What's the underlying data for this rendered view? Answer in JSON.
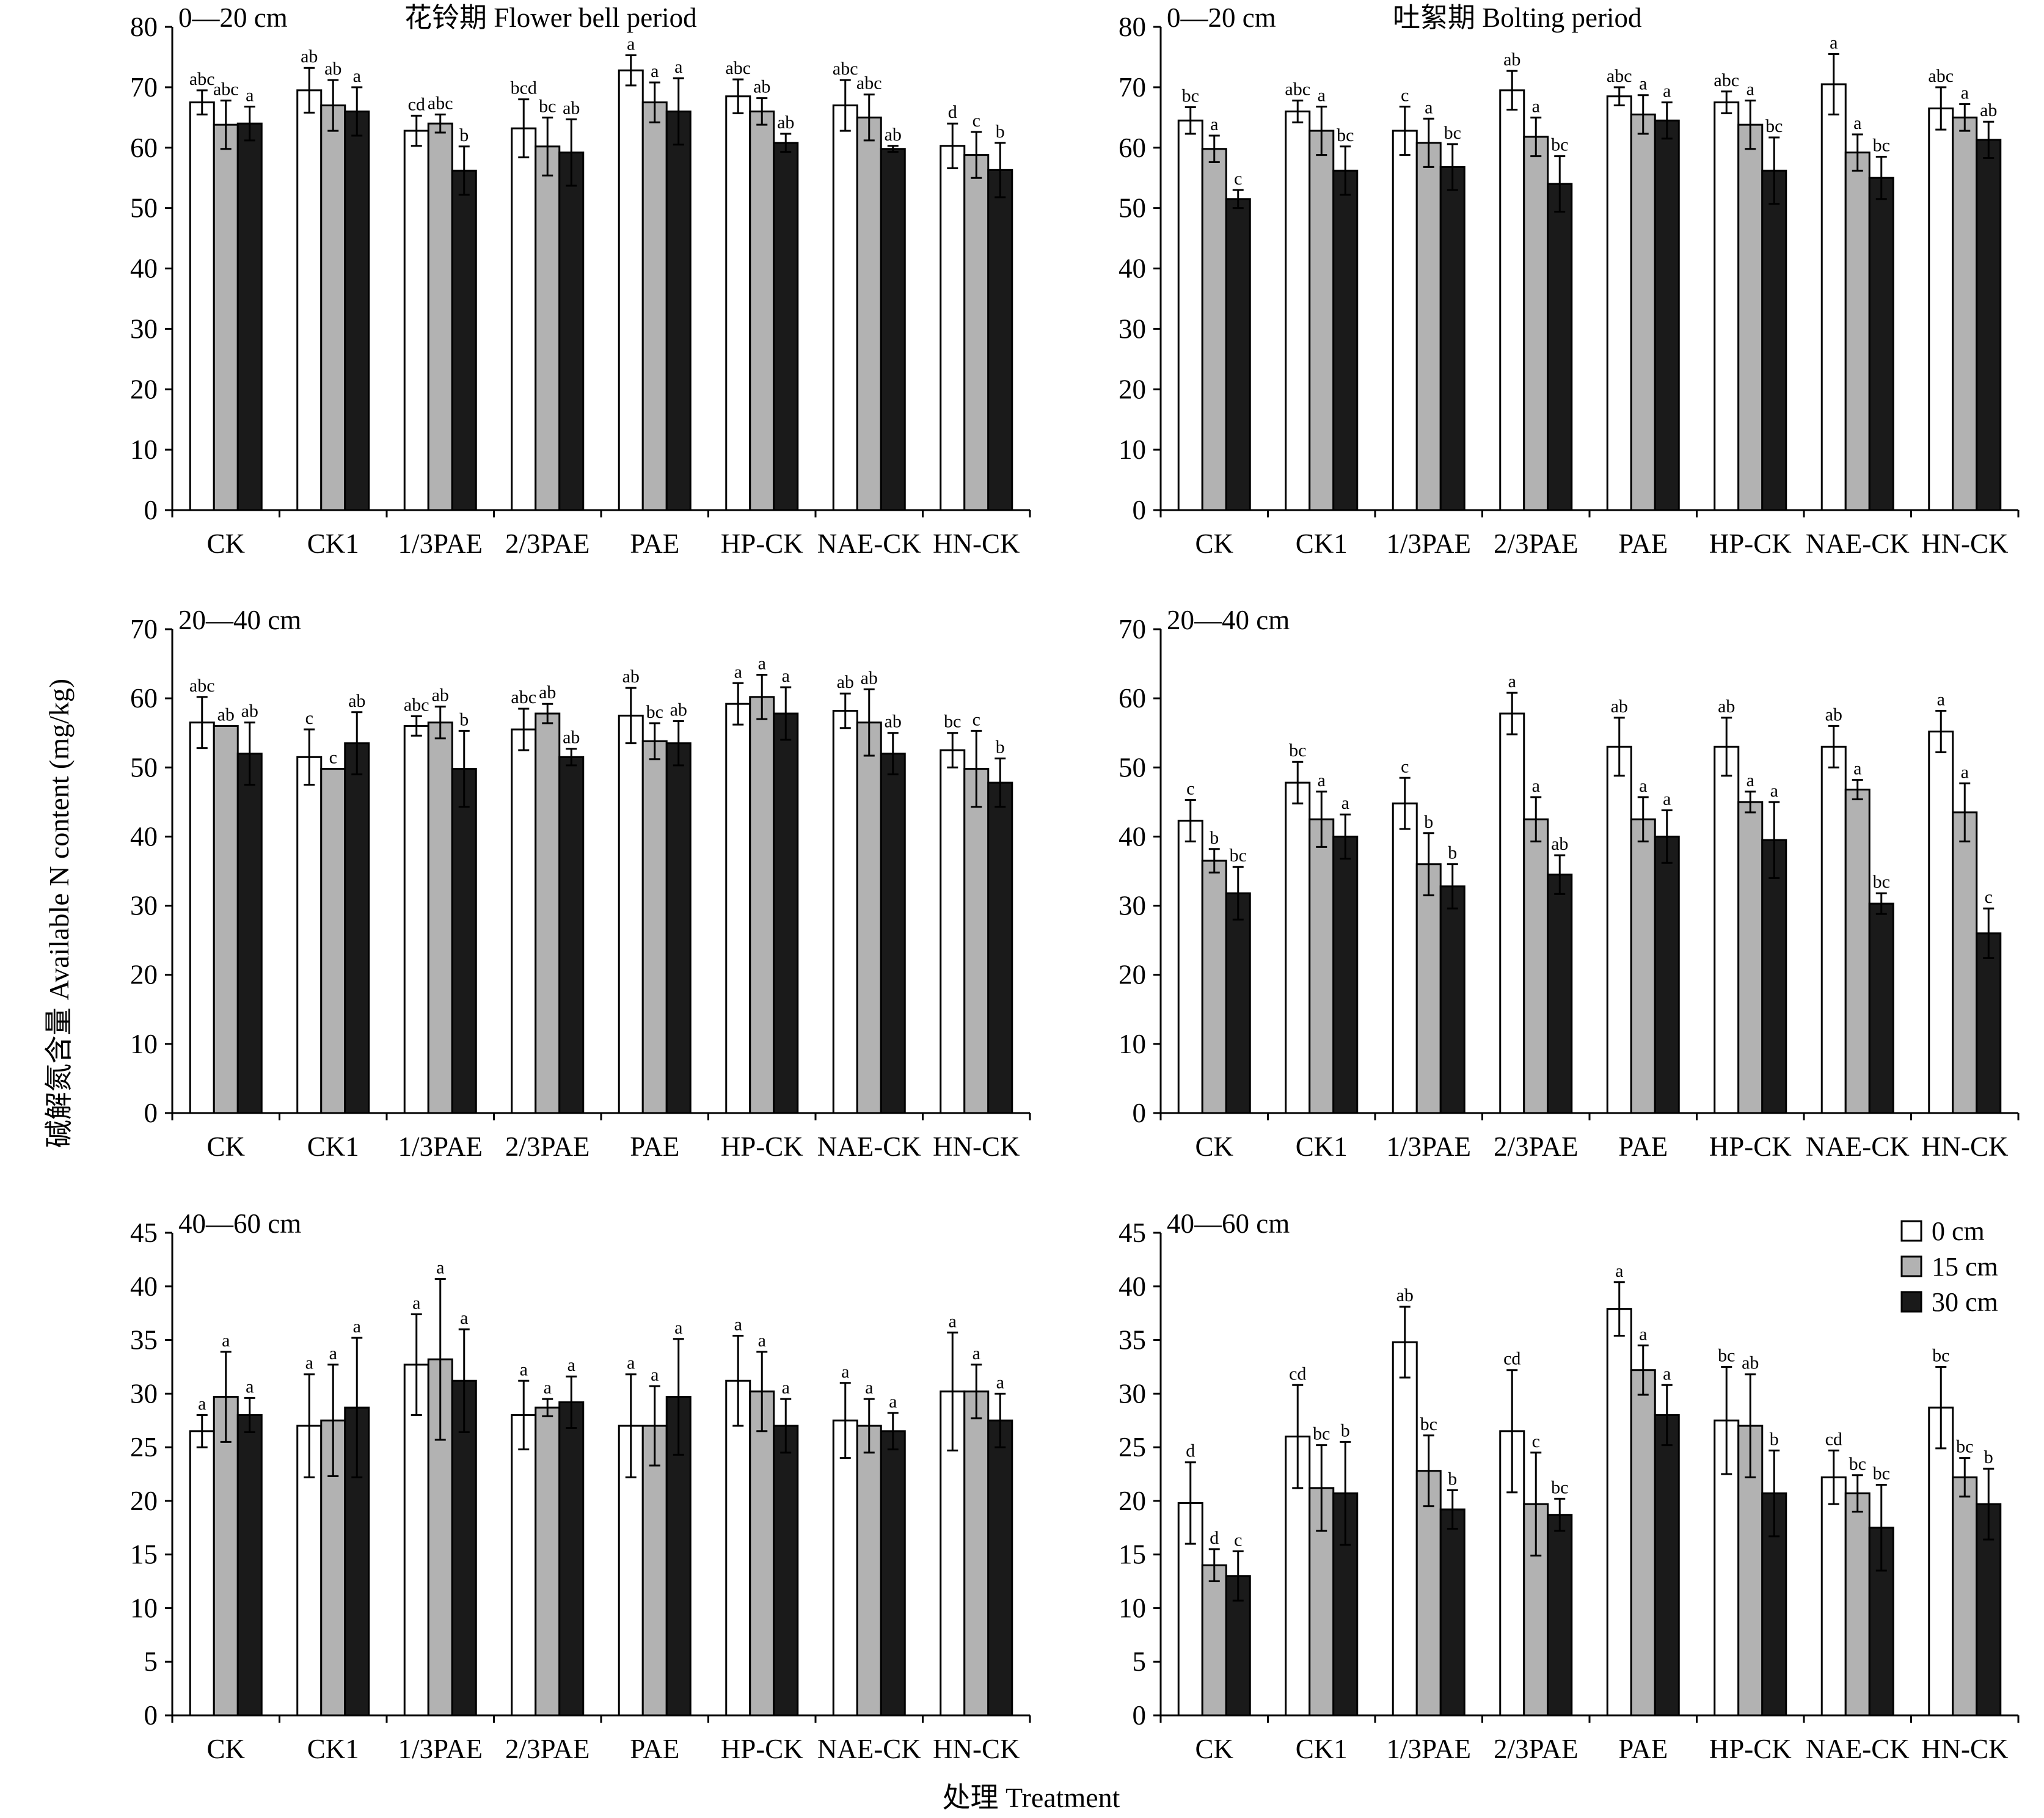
{
  "figure": {
    "ylabel": "碱解氮含量 Available N content (mg/kg)",
    "xlabel": "处理 Treatment"
  },
  "legend": {
    "items": [
      {
        "label": "0 cm",
        "color": "#ffffff"
      },
      {
        "label": "15 cm",
        "color": "#b2b2b2"
      },
      {
        "label": "30 cm",
        "color": "#1a1a1a"
      }
    ]
  },
  "chart_data": [
    {
      "type": "bar",
      "depth_label": "0—20 cm",
      "title": "花铃期 Flower bell period",
      "categories": [
        "CK",
        "CK1",
        "1/3PAE",
        "2/3PAE",
        "PAE",
        "HP-CK",
        "NAE-CK",
        "HN-CK"
      ],
      "ylim": [
        0,
        80
      ],
      "yticks": [
        0,
        10,
        20,
        30,
        40,
        50,
        60,
        70,
        80
      ],
      "series": [
        {
          "name": "0 cm",
          "values": [
            67.5,
            69.5,
            62.8,
            63.2,
            72.8,
            68.5,
            67,
            60.3
          ],
          "errors": [
            2,
            3.7,
            2.5,
            4.8,
            2.5,
            2.8,
            4.2,
            3.7
          ],
          "letters": [
            "abc",
            "ab",
            "cd",
            "bcd",
            "a",
            "abc",
            "abc",
            "d"
          ]
        },
        {
          "name": "15 cm",
          "values": [
            63.8,
            67,
            64,
            60.2,
            67.5,
            66,
            65,
            58.8
          ],
          "errors": [
            4,
            4.2,
            1.5,
            4.8,
            3.3,
            2.2,
            3.8,
            3.8
          ],
          "letters": [
            "abc",
            "ab",
            "abc",
            "bc",
            "a",
            "ab",
            "abc",
            "c"
          ]
        },
        {
          "name": "30 cm",
          "values": [
            64,
            66,
            56.2,
            59.2,
            66,
            60.8,
            59.8,
            56.3
          ],
          "errors": [
            2.8,
            4,
            4,
            5.5,
            5.5,
            1.5,
            0.5,
            4.5
          ],
          "letters": [
            "a",
            "a",
            "b",
            "ab",
            "a",
            "ab",
            "ab",
            "b"
          ]
        }
      ]
    },
    {
      "type": "bar",
      "depth_label": "0—20 cm",
      "title": "吐絮期 Bolting period",
      "categories": [
        "CK",
        "CK1",
        "1/3PAE",
        "2/3PAE",
        "PAE",
        "HP-CK",
        "NAE-CK",
        "HN-CK"
      ],
      "ylim": [
        0,
        80
      ],
      "yticks": [
        0,
        10,
        20,
        30,
        40,
        50,
        60,
        70,
        80
      ],
      "series": [
        {
          "name": "0 cm",
          "values": [
            64.5,
            66,
            62.8,
            69.5,
            68.5,
            67.5,
            70.5,
            66.5
          ],
          "errors": [
            2.2,
            1.8,
            4,
            3.2,
            1.5,
            1.8,
            5,
            3.5
          ],
          "letters": [
            "bc",
            "abc",
            "c",
            "ab",
            "abc",
            "abc",
            "a",
            "abc"
          ]
        },
        {
          "name": "15 cm",
          "values": [
            59.8,
            62.8,
            60.8,
            61.8,
            65.5,
            63.8,
            59.2,
            65
          ],
          "errors": [
            2.2,
            4,
            4,
            3.2,
            3.2,
            4,
            3,
            2.2
          ],
          "letters": [
            "a",
            "a",
            "a",
            "a",
            "a",
            "a",
            "a",
            "a"
          ]
        },
        {
          "name": "30 cm",
          "values": [
            51.5,
            56.2,
            56.8,
            54,
            64.5,
            56.2,
            55,
            61.3
          ],
          "errors": [
            1.5,
            4,
            3.8,
            4.6,
            3,
            5.5,
            3.5,
            3
          ],
          "letters": [
            "c",
            "bc",
            "bc",
            "bc",
            "a",
            "bc",
            "bc",
            "ab"
          ]
        }
      ]
    },
    {
      "type": "bar",
      "depth_label": "20—40 cm",
      "title": "",
      "categories": [
        "CK",
        "CK1",
        "1/3PAE",
        "2/3PAE",
        "PAE",
        "HP-CK",
        "NAE-CK",
        "HN-CK"
      ],
      "ylim": [
        0,
        70
      ],
      "yticks": [
        0,
        10,
        20,
        30,
        40,
        50,
        60,
        70
      ],
      "series": [
        {
          "name": "0 cm",
          "values": [
            56.5,
            51.5,
            56,
            55.5,
            57.5,
            59.2,
            58.2,
            52.5
          ],
          "errors": [
            3.7,
            4,
            1.4,
            3,
            4,
            3,
            2.5,
            2.5
          ],
          "letters": [
            "abc",
            "c",
            "abc",
            "abc",
            "ab",
            "a",
            "ab",
            "bc"
          ]
        },
        {
          "name": "15 cm",
          "values": [
            56,
            49.8,
            56.5,
            57.8,
            53.8,
            60.2,
            56.5,
            49.8
          ],
          "errors": [
            0,
            0,
            2.3,
            1.4,
            2.6,
            3.2,
            4.8,
            5.5
          ],
          "letters": [
            "ab",
            "c",
            "ab",
            "ab",
            "bc",
            "a",
            "ab",
            "c"
          ]
        },
        {
          "name": "30 cm",
          "values": [
            52,
            53.5,
            49.8,
            51.5,
            53.5,
            57.8,
            52,
            47.8
          ],
          "errors": [
            4.5,
            4.5,
            5.5,
            1.2,
            3.2,
            3.8,
            3,
            3.5
          ],
          "letters": [
            "ab",
            "ab",
            "b",
            "ab",
            "ab",
            "a",
            "ab",
            "b"
          ]
        }
      ]
    },
    {
      "type": "bar",
      "depth_label": "20—40 cm",
      "title": "",
      "categories": [
        "CK",
        "CK1",
        "1/3PAE",
        "2/3PAE",
        "PAE",
        "HP-CK",
        "NAE-CK",
        "HN-CK"
      ],
      "ylim": [
        0,
        70
      ],
      "yticks": [
        0,
        10,
        20,
        30,
        40,
        50,
        60,
        70
      ],
      "series": [
        {
          "name": "0 cm",
          "values": [
            42.3,
            47.8,
            44.8,
            57.8,
            53,
            53,
            53,
            55.2
          ],
          "errors": [
            3,
            3,
            3.7,
            3,
            4.2,
            4.2,
            3,
            3
          ],
          "letters": [
            "c",
            "bc",
            "c",
            "a",
            "ab",
            "ab",
            "ab",
            "a"
          ]
        },
        {
          "name": "15 cm",
          "values": [
            36.5,
            42.5,
            36,
            42.5,
            42.5,
            45,
            46.8,
            43.5
          ],
          "errors": [
            1.7,
            4,
            4.5,
            3.2,
            3.2,
            1.5,
            1.4,
            4.2
          ],
          "letters": [
            "b",
            "a",
            "b",
            "a",
            "a",
            "a",
            "a",
            "a"
          ]
        },
        {
          "name": "30 cm",
          "values": [
            31.8,
            40,
            32.8,
            34.5,
            40,
            39.5,
            30.3,
            26
          ],
          "errors": [
            3.8,
            3.2,
            3.2,
            2.8,
            3.8,
            5.5,
            1.5,
            3.6
          ],
          "letters": [
            "bc",
            "a",
            "b",
            "ab",
            "a",
            "a",
            "bc",
            "c"
          ]
        }
      ]
    },
    {
      "type": "bar",
      "depth_label": "40—60 cm",
      "title": "",
      "categories": [
        "CK",
        "CK1",
        "1/3PAE",
        "2/3PAE",
        "PAE",
        "HP-CK",
        "NAE-CK",
        "HN-CK"
      ],
      "ylim": [
        0,
        45
      ],
      "yticks": [
        0,
        5,
        10,
        15,
        20,
        25,
        30,
        35,
        40,
        45
      ],
      "series": [
        {
          "name": "0 cm",
          "values": [
            26.5,
            27,
            32.7,
            28,
            27,
            31.2,
            27.5,
            30.2
          ],
          "errors": [
            1.5,
            4.8,
            4.7,
            3.2,
            4.8,
            4.2,
            3.5,
            5.5
          ],
          "letters": [
            "a",
            "a",
            "a",
            "a",
            "a",
            "a",
            "a",
            "a"
          ]
        },
        {
          "name": "15 cm",
          "values": [
            29.7,
            27.5,
            33.2,
            28.7,
            27,
            30.2,
            27,
            30.2
          ],
          "errors": [
            4.2,
            5.2,
            7.5,
            0.8,
            3.7,
            3.7,
            2.5,
            2.5
          ],
          "letters": [
            "a",
            "a",
            "a",
            "a",
            "a",
            "a",
            "a",
            "a"
          ]
        },
        {
          "name": "30 cm",
          "values": [
            28,
            28.7,
            31.2,
            29.2,
            29.7,
            27,
            26.5,
            27.5
          ],
          "errors": [
            1.6,
            6.5,
            4.8,
            2.4,
            5.4,
            2.5,
            1.7,
            2.5
          ],
          "letters": [
            "a",
            "a",
            "a",
            "a",
            "a",
            "a",
            "a",
            "a"
          ]
        }
      ]
    },
    {
      "type": "bar",
      "depth_label": "40—60 cm",
      "title": "",
      "categories": [
        "CK",
        "CK1",
        "1/3PAE",
        "2/3PAE",
        "PAE",
        "HP-CK",
        "NAE-CK",
        "HN-CK"
      ],
      "ylim": [
        0,
        45
      ],
      "yticks": [
        0,
        5,
        10,
        15,
        20,
        25,
        30,
        35,
        40,
        45
      ],
      "series": [
        {
          "name": "0 cm",
          "values": [
            19.8,
            26,
            34.8,
            26.5,
            37.9,
            27.5,
            22.2,
            28.7
          ],
          "errors": [
            3.8,
            4.8,
            3.3,
            5.7,
            2.5,
            5,
            2.5,
            3.8
          ],
          "letters": [
            "d",
            "cd",
            "ab",
            "cd",
            "a",
            "bc",
            "cd",
            "bc"
          ]
        },
        {
          "name": "15 cm",
          "values": [
            14,
            21.2,
            22.8,
            19.7,
            32.2,
            27,
            20.7,
            22.2
          ],
          "errors": [
            1.5,
            4,
            3.3,
            4.8,
            2.3,
            4.8,
            1.7,
            1.8
          ],
          "letters": [
            "d",
            "bc",
            "bc",
            "c",
            "a",
            "ab",
            "bc",
            "bc"
          ]
        },
        {
          "name": "30 cm",
          "values": [
            13,
            20.7,
            19.2,
            18.7,
            28,
            20.7,
            17.5,
            19.7
          ],
          "errors": [
            2.3,
            4.8,
            1.8,
            1.5,
            2.8,
            4,
            4,
            3.3
          ],
          "letters": [
            "c",
            "b",
            "b",
            "bc",
            "a",
            "b",
            "bc",
            "b"
          ]
        }
      ]
    }
  ]
}
